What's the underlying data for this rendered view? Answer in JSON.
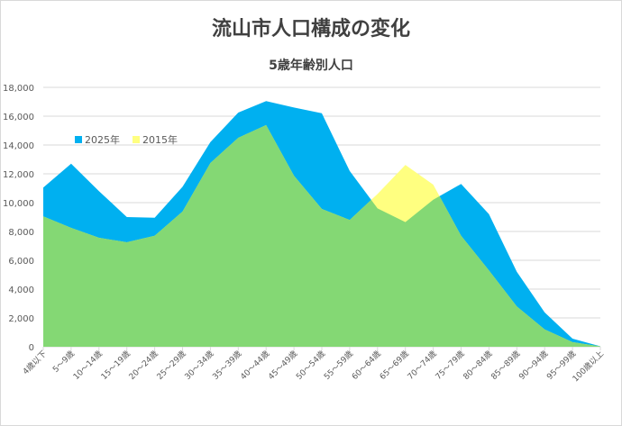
{
  "chart_data": {
    "type": "area",
    "title": "流山市人口構成の変化",
    "subtitle": "5歳年齢別人口",
    "xlabel": "",
    "ylabel": "",
    "ylim": [
      0,
      18000
    ],
    "yticks": [
      "0",
      "2,000",
      "4,000",
      "6,000",
      "8,000",
      "10,000",
      "12,000",
      "14,000",
      "16,000",
      "18,000"
    ],
    "ytick_values": [
      0,
      2000,
      4000,
      6000,
      8000,
      10000,
      12000,
      14000,
      16000,
      18000
    ],
    "grid": true,
    "legend_position": "top-left",
    "categories": [
      "4歳以下",
      "5～9歳",
      "10～14歳",
      "15～19歳",
      "20～24歳",
      "25～29歳",
      "30～34歳",
      "35～39歳",
      "40～44歳",
      "45～49歳",
      "50～54歳",
      "55～59歳",
      "60～64歳",
      "65～69歳",
      "70～74歳",
      "75～79歳",
      "80～84歳",
      "85～89歳",
      "90～94歳",
      "95～99歳",
      "100歳以上"
    ],
    "series": [
      {
        "name": "2025年",
        "color": "#00B0F0",
        "values": [
          11050,
          12700,
          10800,
          9000,
          8950,
          11100,
          14200,
          16250,
          17050,
          16600,
          16200,
          12200,
          9600,
          8650,
          10200,
          11300,
          9200,
          5200,
          2380,
          560,
          30
        ]
      },
      {
        "name": "2015年",
        "color": "#FFFF80",
        "values": [
          9050,
          8250,
          7560,
          7250,
          7700,
          9380,
          12750,
          14500,
          15380,
          11870,
          9560,
          8800,
          10600,
          12620,
          11250,
          7700,
          5300,
          2800,
          1200,
          320,
          20
        ]
      }
    ],
    "overlap_color": "#84D874"
  }
}
